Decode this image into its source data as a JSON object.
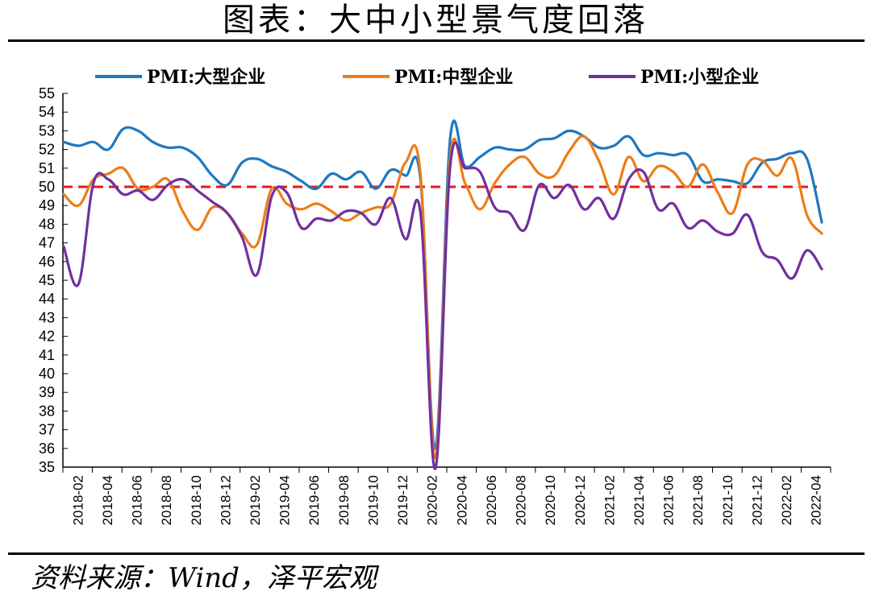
{
  "header": {
    "title": "图表：大中小型景气度回落"
  },
  "footer": {
    "source": "资料来源：Wind，泽平宏观"
  },
  "chart_data": {
    "type": "line",
    "ylim": [
      35,
      55
    ],
    "y_ticks": [
      35,
      36,
      37,
      38,
      39,
      40,
      41,
      42,
      43,
      44,
      45,
      46,
      47,
      48,
      49,
      50,
      51,
      52,
      53,
      54,
      55
    ],
    "x_tick_labels": [
      "2018-02",
      "2018-04",
      "2018-06",
      "2018-08",
      "2018-10",
      "2018-12",
      "2019-02",
      "2019-04",
      "2019-06",
      "2019-08",
      "2019-10",
      "2019-12",
      "2020-02",
      "2020-04",
      "2020-06",
      "2020-08",
      "2020-10",
      "2020-12",
      "2021-02",
      "2021-04",
      "2021-06",
      "2021-08",
      "2021-10",
      "2021-12",
      "2022-02",
      "2022-04"
    ],
    "x": [
      "2018-01",
      "2018-02",
      "2018-03",
      "2018-04",
      "2018-05",
      "2018-06",
      "2018-07",
      "2018-08",
      "2018-09",
      "2018-10",
      "2018-11",
      "2018-12",
      "2019-01",
      "2019-02",
      "2019-03",
      "2019-04",
      "2019-05",
      "2019-06",
      "2019-07",
      "2019-08",
      "2019-09",
      "2019-10",
      "2019-11",
      "2019-12",
      "2020-01",
      "2020-02",
      "2020-03",
      "2020-04",
      "2020-05",
      "2020-06",
      "2020-07",
      "2020-08",
      "2020-09",
      "2020-10",
      "2020-11",
      "2020-12",
      "2021-01",
      "2021-02",
      "2021-03",
      "2021-04",
      "2021-05",
      "2021-06",
      "2021-07",
      "2021-08",
      "2021-09",
      "2021-10",
      "2021-11",
      "2021-12",
      "2022-01",
      "2022-02",
      "2022-03",
      "2022-04"
    ],
    "reference_line": 50,
    "colors": {
      "large": "#1f78c1",
      "medium": "#ed7d1a",
      "small": "#7030a0",
      "reference": "#e31a1c"
    },
    "legend_position": "top",
    "series": [
      {
        "name": "PMI:大型企业",
        "color": "#1f78c1",
        "values": [
          52.4,
          52.2,
          52.4,
          52.0,
          53.1,
          53.0,
          52.4,
          52.1,
          52.1,
          51.6,
          50.6,
          50.1,
          51.3,
          51.5,
          51.1,
          50.8,
          50.3,
          49.9,
          50.7,
          50.4,
          50.8,
          49.9,
          50.9,
          50.6,
          50.4,
          36.0,
          52.6,
          51.1,
          51.6,
          52.1,
          52.0,
          52.0,
          52.5,
          52.6,
          53.0,
          52.7,
          52.1,
          52.2,
          52.7,
          51.7,
          51.8,
          51.7,
          51.7,
          50.3,
          50.4,
          50.3,
          50.2,
          51.3,
          51.5,
          51.8,
          51.5,
          48.1
        ]
      },
      {
        "name": "PMI:中型企业",
        "color": "#ed7d1a",
        "values": [
          49.6,
          49.0,
          50.4,
          50.7,
          51.0,
          49.9,
          50.0,
          50.4,
          48.7,
          47.7,
          48.9,
          48.6,
          47.5,
          46.9,
          49.9,
          49.1,
          48.8,
          49.1,
          48.7,
          48.2,
          48.6,
          48.9,
          49.1,
          51.3,
          50.7,
          35.5,
          51.6,
          50.2,
          48.8,
          50.2,
          51.2,
          51.6,
          50.7,
          50.6,
          51.9,
          52.7,
          51.4,
          49.6,
          51.6,
          50.3,
          51.1,
          50.8,
          50.0,
          51.2,
          49.7,
          48.6,
          51.2,
          51.4,
          50.6,
          51.5,
          48.5,
          47.5
        ]
      },
      {
        "name": "PMI:小型企业",
        "color": "#7030a0",
        "values": [
          46.8,
          44.8,
          50.2,
          50.4,
          49.6,
          49.8,
          49.3,
          50.1,
          50.4,
          49.8,
          49.2,
          48.6,
          47.3,
          45.3,
          49.5,
          49.7,
          47.8,
          48.3,
          48.2,
          48.7,
          48.6,
          48.0,
          49.4,
          47.2,
          48.6,
          34.1,
          51.1,
          51.0,
          50.8,
          48.9,
          48.6,
          47.7,
          50.1,
          49.4,
          50.1,
          48.8,
          49.4,
          48.3,
          50.4,
          50.8,
          48.8,
          49.1,
          47.8,
          48.2,
          47.6,
          47.5,
          48.5,
          46.5,
          46.1,
          45.1,
          46.6,
          45.6
        ]
      }
    ]
  }
}
